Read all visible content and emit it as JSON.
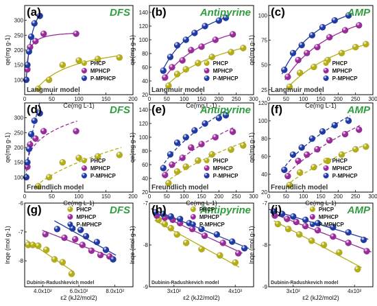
{
  "series_colors": {
    "PHCP": "#b5ae12",
    "MPHCP": "#9b2a9b",
    "P-MPHCP": "#1f3aa6"
  },
  "title_color": "#2f9e3f",
  "chart_data": [
    {
      "id": "a",
      "type": "scatter",
      "label": "(a)",
      "title": "DFS",
      "model": "Langmuir model",
      "model_type": "langmuir",
      "xlabel": "Ce(mg L-1)",
      "ylabel": "qe(mg g-1)",
      "xlim": [
        0,
        200
      ],
      "ylim": [
        50,
        350
      ],
      "xticks": [
        0,
        50,
        100,
        150,
        200
      ],
      "yticks": [
        100,
        150,
        200,
        250,
        300
      ],
      "series": [
        {
          "name": "PHCP",
          "x": [
            25,
            45,
            70,
            100,
            135,
            175
          ],
          "y": [
            70,
            100,
            150,
            165,
            170,
            175
          ]
        },
        {
          "name": "MPHCP",
          "x": [
            5,
            10,
            20,
            35,
            95
          ],
          "y": [
            135,
            210,
            230,
            255,
            255
          ]
        },
        {
          "name": "P-MPHCP",
          "x": [
            3,
            5,
            8,
            12,
            18,
            28
          ],
          "y": [
            100,
            150,
            195,
            245,
            290,
            315
          ]
        }
      ]
    },
    {
      "id": "b",
      "type": "scatter",
      "label": "(b)",
      "title": "Antipyrine",
      "model": "Langmuir model",
      "model_type": "langmuir",
      "xlabel": "Ce(mg L-1)",
      "ylabel": "qe(mg g-1)",
      "xlim": [
        0,
        300
      ],
      "ylim": [
        20,
        150
      ],
      "xticks": [
        0,
        50,
        100,
        150,
        200,
        250,
        300
      ],
      "yticks": [
        20,
        40,
        60,
        80,
        100,
        120,
        140
      ],
      "series": [
        {
          "name": "PHCP",
          "x": [
            55,
            80,
            105,
            140,
            180,
            235,
            270
          ],
          "y": [
            33,
            50,
            57,
            66,
            75,
            82,
            88
          ]
        },
        {
          "name": "MPHCP",
          "x": [
            45,
            65,
            95,
            120,
            150,
            190,
            240
          ],
          "y": [
            45,
            60,
            70,
            85,
            90,
            100,
            108
          ]
        },
        {
          "name": "P-MPHCP",
          "x": [
            40,
            60,
            80,
            105,
            130,
            160,
            200,
            220
          ],
          "y": [
            55,
            75,
            92,
            100,
            110,
            120,
            128,
            132
          ]
        }
      ]
    },
    {
      "id": "c",
      "type": "scatter",
      "label": "(c)",
      "title": "AMP",
      "model": "Langmuir model",
      "model_type": "langmuir",
      "xlabel": "Ce(mg L-1)",
      "ylabel": "qe(mg g-1)",
      "xlim": [
        0,
        300
      ],
      "ylim": [
        20,
        110
      ],
      "xticks": [
        0,
        50,
        100,
        150,
        200,
        250,
        300
      ],
      "yticks": [
        25,
        50,
        75,
        100
      ],
      "series": [
        {
          "name": "PHCP",
          "x": [
            60,
            90,
            130,
            170,
            210,
            250,
            280
          ],
          "y": [
            28,
            42,
            48,
            55,
            62,
            68,
            71
          ]
        },
        {
          "name": "MPHCP",
          "x": [
            55,
            85,
            110,
            140,
            175,
            220,
            260
          ],
          "y": [
            38,
            55,
            62,
            68,
            78,
            85,
            90
          ]
        },
        {
          "name": "P-MPHCP",
          "x": [
            45,
            70,
            95,
            125,
            155,
            190,
            230
          ],
          "y": [
            45,
            62,
            70,
            80,
            88,
            95,
            100
          ]
        }
      ]
    },
    {
      "id": "d",
      "type": "scatter",
      "label": "(d)",
      "title": "DFS",
      "model": "Freundlich model",
      "model_type": "freundlich",
      "xlabel": "Ce(mg L-1)",
      "ylabel": "qe(mg g-1)",
      "xlim": [
        0,
        200
      ],
      "ylim": [
        50,
        350
      ],
      "xticks": [
        0,
        50,
        100,
        150,
        200
      ],
      "yticks": [
        100,
        150,
        200,
        250,
        300
      ],
      "series": [
        {
          "name": "PHCP",
          "x": [
            25,
            45,
            70,
            100,
            135,
            175
          ],
          "y": [
            70,
            100,
            150,
            165,
            170,
            175
          ]
        },
        {
          "name": "MPHCP",
          "x": [
            5,
            10,
            20,
            35,
            95
          ],
          "y": [
            135,
            210,
            230,
            255,
            255
          ]
        },
        {
          "name": "P-MPHCP",
          "x": [
            3,
            5,
            8,
            12,
            18,
            28
          ],
          "y": [
            100,
            150,
            195,
            245,
            290,
            315
          ]
        }
      ]
    },
    {
      "id": "e",
      "type": "scatter",
      "label": "(e)",
      "title": "Antipyrine",
      "model": "Freundlich model",
      "model_type": "freundlich",
      "xlabel": "Ce(mg L-1)",
      "ylabel": "qe(mg g-1)",
      "xlim": [
        0,
        300
      ],
      "ylim": [
        20,
        150
      ],
      "xticks": [
        0,
        50,
        100,
        150,
        200,
        250,
        300
      ],
      "yticks": [
        20,
        40,
        60,
        80,
        100,
        120,
        140
      ],
      "series": [
        {
          "name": "PHCP",
          "x": [
            55,
            80,
            105,
            140,
            180,
            235,
            270
          ],
          "y": [
            33,
            50,
            57,
            66,
            75,
            82,
            88
          ]
        },
        {
          "name": "MPHCP",
          "x": [
            45,
            65,
            95,
            120,
            150,
            190,
            240
          ],
          "y": [
            45,
            60,
            70,
            85,
            90,
            100,
            108
          ]
        },
        {
          "name": "P-MPHCP",
          "x": [
            40,
            60,
            80,
            105,
            130,
            160,
            200,
            220
          ],
          "y": [
            55,
            75,
            92,
            100,
            110,
            120,
            128,
            132
          ]
        }
      ]
    },
    {
      "id": "f",
      "type": "scatter",
      "label": "(f)",
      "title": "AMP",
      "model": "Freundlich model",
      "model_type": "freundlich",
      "xlabel": "Ce(mg L-1)",
      "ylabel": "qe(mg g-1)",
      "xlim": [
        0,
        300
      ],
      "ylim": [
        20,
        120
      ],
      "xticks": [
        0,
        50,
        100,
        150,
        200,
        250,
        300
      ],
      "yticks": [
        20,
        40,
        60,
        80,
        100,
        120
      ],
      "series": [
        {
          "name": "PHCP",
          "x": [
            60,
            90,
            130,
            170,
            210,
            250,
            280
          ],
          "y": [
            28,
            42,
            48,
            55,
            62,
            68,
            71
          ]
        },
        {
          "name": "MPHCP",
          "x": [
            55,
            85,
            110,
            140,
            175,
            220,
            260
          ],
          "y": [
            38,
            55,
            62,
            68,
            78,
            85,
            90
          ]
        },
        {
          "name": "P-MPHCP",
          "x": [
            45,
            70,
            95,
            125,
            155,
            190,
            230
          ],
          "y": [
            45,
            62,
            70,
            80,
            88,
            95,
            100
          ]
        }
      ]
    },
    {
      "id": "g",
      "type": "scatter",
      "label": "(g)",
      "title": "DFS",
      "model": "Dubinin-Radushkevich model",
      "model_type": "linear",
      "xlabel": "ε2 (kJ2/mol2)",
      "ylabel": "lnqe (mol g-1)",
      "xlim": [
        300,
        900
      ],
      "ylim": [
        -8.9,
        -6.0
      ],
      "xticks": [
        400,
        600,
        800
      ],
      "xtick_labels": [
        "4.0x10²",
        "6.0x10²",
        "8.0x10²"
      ],
      "yticks": [
        -8,
        -7,
        -6
      ],
      "series": [
        {
          "name": "PHCP",
          "x": [
            320,
            345,
            375,
            420,
            465,
            510,
            560
          ],
          "y": [
            -7.45,
            -7.45,
            -7.48,
            -7.62,
            -7.95,
            -8.05,
            -8.45
          ]
        },
        {
          "name": "MPHCP",
          "x": [
            415,
            520,
            580,
            620,
            670,
            720,
            770
          ],
          "y": [
            -7.08,
            -7.2,
            -7.25,
            -7.45,
            -7.65,
            -7.8,
            -7.85
          ]
        },
        {
          "name": "P-MPHCP",
          "x": [
            480,
            565,
            610,
            640,
            700,
            750,
            790
          ],
          "y": [
            -6.9,
            -6.88,
            -6.93,
            -7.15,
            -7.35,
            -7.62,
            -7.95
          ]
        }
      ]
    },
    {
      "id": "h",
      "type": "scatter",
      "label": "(h)",
      "title": "Antipyrine",
      "model": "Dubinin-Radushkevich model",
      "model_type": "linear",
      "xlabel": "ε2 (kJ2/mol2)",
      "ylabel": "lnqe (mol g-1)",
      "xlim": [
        260,
        430
      ],
      "ylim": [
        -9.0,
        -7.0
      ],
      "xticks": [
        300,
        400
      ],
      "xtick_labels": [
        "3x10²",
        "4x10²"
      ],
      "yticks": [
        -9,
        -8,
        -7
      ],
      "series": [
        {
          "name": "PHCP",
          "x": [
            275,
            285,
            295,
            305,
            320,
            345,
            375,
            400
          ],
          "y": [
            -7.4,
            -7.5,
            -7.6,
            -7.75,
            -7.95,
            -8.1,
            -8.25,
            -8.42
          ]
        },
        {
          "name": "MPHCP",
          "x": [
            272,
            285,
            298,
            310,
            330,
            350,
            380,
            405
          ],
          "y": [
            -7.3,
            -7.35,
            -7.4,
            -7.48,
            -7.62,
            -7.78,
            -7.95,
            -8.2
          ]
        },
        {
          "name": "P-MPHCP",
          "x": [
            270,
            282,
            295,
            310,
            325,
            345,
            370,
            395,
            415
          ],
          "y": [
            -7.22,
            -7.26,
            -7.32,
            -7.38,
            -7.48,
            -7.62,
            -7.75,
            -7.92,
            -8.08
          ]
        }
      ]
    },
    {
      "id": "i",
      "type": "scatter",
      "label": "(i)",
      "title": "AMP",
      "model": "Dubinin-Radushkevich model",
      "model_type": "linear",
      "xlabel": "ε2 (kJ2/mol2)",
      "ylabel": "lnqe (mol g-1)",
      "xlim": [
        260,
        430
      ],
      "ylim": [
        -9.0,
        -7.0
      ],
      "xticks": [
        300,
        400
      ],
      "xtick_labels": [
        "3x10²",
        "4x10²"
      ],
      "yticks": [
        -9,
        -8,
        -7
      ],
      "series": [
        {
          "name": "PHCP",
          "x": [
            275,
            292,
            310,
            330,
            350,
            375,
            405
          ],
          "y": [
            -7.5,
            -7.62,
            -7.75,
            -7.9,
            -8.0,
            -8.18,
            -8.58
          ]
        },
        {
          "name": "MPHCP",
          "x": [
            270,
            290,
            305,
            320,
            340,
            365,
            390,
            420
          ],
          "y": [
            -7.3,
            -7.38,
            -7.45,
            -7.55,
            -7.65,
            -7.8,
            -7.95,
            -8.15
          ]
        },
        {
          "name": "P-MPHCP",
          "x": [
            268,
            282,
            300,
            320,
            340,
            365,
            390,
            415
          ],
          "y": [
            -7.2,
            -7.26,
            -7.32,
            -7.4,
            -7.48,
            -7.58,
            -7.7,
            -7.88
          ]
        }
      ]
    }
  ]
}
